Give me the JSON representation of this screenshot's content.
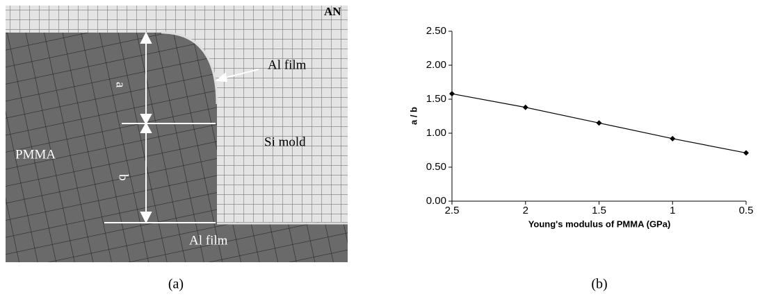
{
  "panel_a": {
    "top_label": "AN",
    "label_al_top": "Al film",
    "label_si": "Si mold",
    "label_pmma": "PMMA",
    "label_a": "a",
    "label_b": "b",
    "label_al_bottom": "Al film",
    "caption": "(a)"
  },
  "chart_data": {
    "type": "line",
    "caption": "(b)",
    "categories": [
      "2.5",
      "2",
      "1.5",
      "1",
      "0.5"
    ],
    "values": [
      1.58,
      1.38,
      1.15,
      0.92,
      0.71
    ],
    "color": "#000000",
    "xlabel": "Young's modulus of PMMA (GPa)",
    "ylabel": "a / b",
    "ylim": [
      0,
      2.5
    ],
    "yticks": [
      {
        "value": 0,
        "label": "0.00"
      },
      {
        "value": 0.5,
        "label": "0.50"
      },
      {
        "value": 1,
        "label": "1.00"
      },
      {
        "value": 1.5,
        "label": "1.50"
      },
      {
        "value": 2,
        "label": "2.00"
      },
      {
        "value": 2.5,
        "label": "2.50"
      }
    ]
  }
}
